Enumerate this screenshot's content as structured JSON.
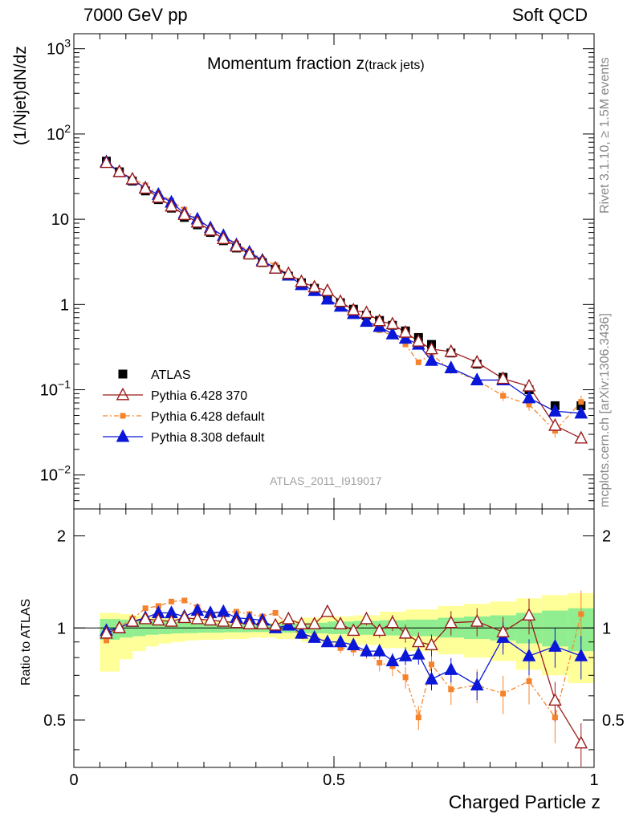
{
  "header": {
    "left": "7000 GeV pp",
    "right": "Soft QCD"
  },
  "title": {
    "main": "Momentum fraction z",
    "sub": "(track jets)"
  },
  "side": {
    "rivet": "Rivet 3.1.10, ≥ 1.5M events",
    "mcplots": "mcplots.cern.ch [arXiv:1306.3436]"
  },
  "analysis_id": "ATLAS_2011_I919017",
  "colors": {
    "atlas": "#000000",
    "p6_370": "#9b1b1b",
    "p6_default": "#f5832b",
    "p8_default": "#0a17d8",
    "band_inner": "#90ee90",
    "band_outer": "#ffff99"
  },
  "chart_data": {
    "type": "scatter",
    "xlabel": "Charged Particle z",
    "ylabel_top": "(1/Njet)dN/dz",
    "ylabel_bottom": "Ratio to ATLAS",
    "xlim": [
      0,
      1
    ],
    "ylim_top": [
      0.004,
      1500
    ],
    "ylim_bottom": [
      0.35,
      2.45
    ],
    "y_scale_top": "log",
    "y_scale_bottom": "log",
    "x_ticks": [
      {
        "v": 0,
        "label": "0"
      },
      {
        "v": 0.5,
        "label": "0.5"
      },
      {
        "v": 1,
        "label": "1"
      }
    ],
    "y_ticks_top": [
      {
        "v": 0.01,
        "base": "10",
        "exp": "−2"
      },
      {
        "v": 0.1,
        "base": "10",
        "exp": "−1"
      },
      {
        "v": 1,
        "base": "1",
        "exp": ""
      },
      {
        "v": 10,
        "base": "10",
        "exp": ""
      },
      {
        "v": 100,
        "base": "10",
        "exp": "2"
      },
      {
        "v": 1000,
        "base": "10",
        "exp": "3"
      }
    ],
    "y_ticks_bottom": [
      {
        "v": 0.5,
        "label": "0.5"
      },
      {
        "v": 1,
        "label": "1"
      },
      {
        "v": 2,
        "label": "2"
      }
    ],
    "legend": [
      {
        "key": "atlas",
        "label": "ATLAS"
      },
      {
        "key": "p6_370",
        "label": "Pythia 6.428 370"
      },
      {
        "key": "p6_default",
        "label": "Pythia 6.428 default"
      },
      {
        "key": "p8_default",
        "label": "Pythia 8.308 default"
      }
    ],
    "x": [
      0.0625,
      0.0875,
      0.1125,
      0.1375,
      0.1625,
      0.1875,
      0.2125,
      0.2375,
      0.2625,
      0.2875,
      0.3125,
      0.3375,
      0.3625,
      0.3875,
      0.4125,
      0.4375,
      0.4625,
      0.4875,
      0.5125,
      0.5375,
      0.5625,
      0.5875,
      0.6125,
      0.6375,
      0.6625,
      0.6875,
      0.725,
      0.775,
      0.825,
      0.875,
      0.925,
      0.975
    ],
    "atlas": [
      48,
      36,
      28,
      21.5,
      17,
      13.5,
      10.5,
      8.6,
      7,
      5.6,
      4.6,
      3.8,
      3.1,
      2.6,
      2.15,
      1.8,
      1.55,
      1.28,
      1.05,
      0.88,
      0.75,
      0.65,
      0.57,
      0.49,
      0.41,
      0.34,
      0.27,
      0.2,
      0.14,
      0.1,
      0.065,
      0.065
    ],
    "p6_370": [
      46,
      36,
      29.5,
      23,
      18,
      14.2,
      11.3,
      9.2,
      7.4,
      5.9,
      4.8,
      3.9,
      3.2,
      2.65,
      2.3,
      1.85,
      1.6,
      1.45,
      1.08,
      0.86,
      0.8,
      0.64,
      0.59,
      0.47,
      0.37,
      0.3,
      0.28,
      0.21,
      0.135,
      0.11,
      0.038,
      0.027
    ],
    "p6_default": [
      44,
      36.5,
      30,
      25,
      20,
      16.5,
      13,
      10,
      7.8,
      6.3,
      5.2,
      4.2,
      3.4,
      2.9,
      2.2,
      1.7,
      1.45,
      1.15,
      0.9,
      0.75,
      0.63,
      0.5,
      0.43,
      0.34,
      0.21,
      0.26,
      0.17,
      0.13,
      0.085,
      0.067,
      0.033,
      0.072
    ],
    "p8_default": [
      47,
      36,
      29.3,
      23.2,
      19.5,
      15.8,
      11.7,
      10,
      7.9,
      6.4,
      5,
      4.1,
      3.3,
      2.65,
      2.2,
      1.7,
      1.45,
      1.15,
      0.95,
      0.78,
      0.63,
      0.55,
      0.45,
      0.4,
      0.34,
      0.22,
      0.18,
      0.13,
      0.13,
      0.08,
      0.056,
      0.053
    ],
    "ratio_p6_370": [
      0.96,
      1.0,
      1.05,
      1.07,
      1.06,
      1.05,
      1.08,
      1.07,
      1.06,
      1.05,
      1.04,
      1.03,
      1.03,
      1.02,
      1.07,
      1.03,
      1.03,
      1.13,
      1.03,
      0.98,
      1.07,
      0.98,
      1.04,
      0.96,
      0.9,
      0.88,
      1.04,
      1.05,
      0.97,
      1.1,
      0.58,
      0.42
    ],
    "ratio_p6_default": [
      0.91,
      1.01,
      1.07,
      1.16,
      1.18,
      1.22,
      1.23,
      1.17,
      1.11,
      1.13,
      1.13,
      1.11,
      1.09,
      1.12,
      1.02,
      0.94,
      0.94,
      0.9,
      0.86,
      0.85,
      0.84,
      0.77,
      0.75,
      0.69,
      0.51,
      0.76,
      0.63,
      0.65,
      0.61,
      0.67,
      0.51,
      1.11
    ],
    "ratio_p8_default": [
      0.98,
      1.0,
      1.05,
      1.08,
      1.12,
      1.12,
      1.09,
      1.14,
      1.12,
      1.13,
      1.08,
      1.07,
      1.06,
      1.0,
      1.02,
      0.96,
      0.93,
      0.9,
      0.9,
      0.88,
      0.84,
      0.84,
      0.78,
      0.81,
      0.82,
      0.68,
      0.73,
      0.65,
      0.93,
      0.81,
      0.87,
      0.81
    ],
    "band_inner": [
      [
        0.05,
        0.088,
        0.915,
        1.07
      ],
      [
        0.088,
        0.113,
        0.93,
        1.065
      ],
      [
        0.113,
        0.138,
        0.94,
        1.06
      ],
      [
        0.138,
        0.163,
        0.95,
        1.055
      ],
      [
        0.163,
        0.188,
        0.955,
        1.05
      ],
      [
        0.188,
        0.213,
        0.96,
        1.045
      ],
      [
        0.213,
        0.238,
        0.962,
        1.04
      ],
      [
        0.238,
        0.288,
        0.965,
        1.035
      ],
      [
        0.288,
        0.338,
        0.968,
        1.03
      ],
      [
        0.338,
        0.388,
        0.97,
        1.03
      ],
      [
        0.388,
        0.438,
        0.965,
        1.035
      ],
      [
        0.438,
        0.488,
        0.96,
        1.04
      ],
      [
        0.488,
        0.538,
        0.955,
        1.05
      ],
      [
        0.538,
        0.588,
        0.95,
        1.055
      ],
      [
        0.588,
        0.638,
        0.945,
        1.06
      ],
      [
        0.638,
        0.7,
        0.94,
        1.065
      ],
      [
        0.7,
        0.75,
        0.93,
        1.08
      ],
      [
        0.75,
        0.8,
        0.92,
        1.09
      ],
      [
        0.8,
        0.85,
        0.91,
        1.1
      ],
      [
        0.85,
        0.9,
        0.89,
        1.12
      ],
      [
        0.9,
        0.95,
        0.87,
        1.14
      ],
      [
        0.95,
        1.0,
        0.84,
        1.16
      ]
    ],
    "band_outer": [
      [
        0.05,
        0.088,
        0.72,
        1.12
      ],
      [
        0.088,
        0.113,
        0.79,
        1.11
      ],
      [
        0.113,
        0.138,
        0.84,
        1.1
      ],
      [
        0.138,
        0.163,
        0.87,
        1.09
      ],
      [
        0.163,
        0.188,
        0.89,
        1.08
      ],
      [
        0.188,
        0.213,
        0.9,
        1.075
      ],
      [
        0.213,
        0.238,
        0.91,
        1.07
      ],
      [
        0.238,
        0.288,
        0.915,
        1.06
      ],
      [
        0.288,
        0.338,
        0.92,
        1.05
      ],
      [
        0.338,
        0.388,
        0.93,
        1.04
      ],
      [
        0.388,
        0.438,
        0.92,
        1.06
      ],
      [
        0.438,
        0.488,
        0.9,
        1.08
      ],
      [
        0.488,
        0.538,
        0.89,
        1.09
      ],
      [
        0.538,
        0.588,
        0.88,
        1.1
      ],
      [
        0.588,
        0.638,
        0.86,
        1.13
      ],
      [
        0.638,
        0.7,
        0.84,
        1.15
      ],
      [
        0.7,
        0.75,
        0.82,
        1.18
      ],
      [
        0.75,
        0.8,
        0.8,
        1.2
      ],
      [
        0.8,
        0.85,
        0.78,
        1.22
      ],
      [
        0.85,
        0.9,
        0.73,
        1.25
      ],
      [
        0.9,
        0.95,
        0.7,
        1.28
      ],
      [
        0.95,
        1.0,
        0.66,
        1.3
      ]
    ]
  }
}
